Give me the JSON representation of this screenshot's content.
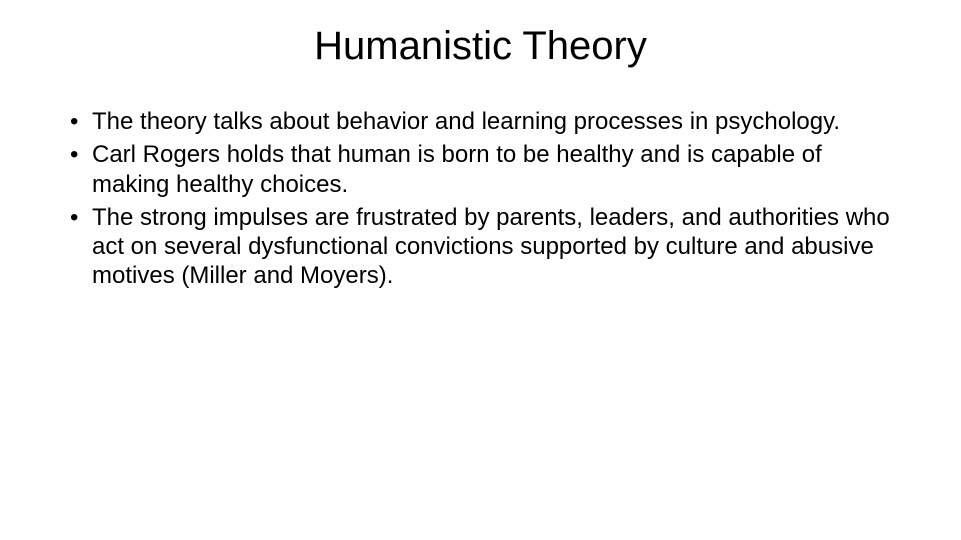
{
  "slide": {
    "title": "Humanistic Theory",
    "bullets": [
      "The theory talks about behavior and learning processes in psychology.",
      "Carl Rogers holds that human is born to be healthy and is capable of making healthy choices.",
      "The strong impulses are frustrated by parents, leaders, and authorities who act on several dysfunctional convictions supported by culture and abusive motives (Miller and Moyers)."
    ],
    "title_fontsize": 40,
    "body_fontsize": 24,
    "background_color": "#ffffff",
    "text_color": "#000000"
  }
}
